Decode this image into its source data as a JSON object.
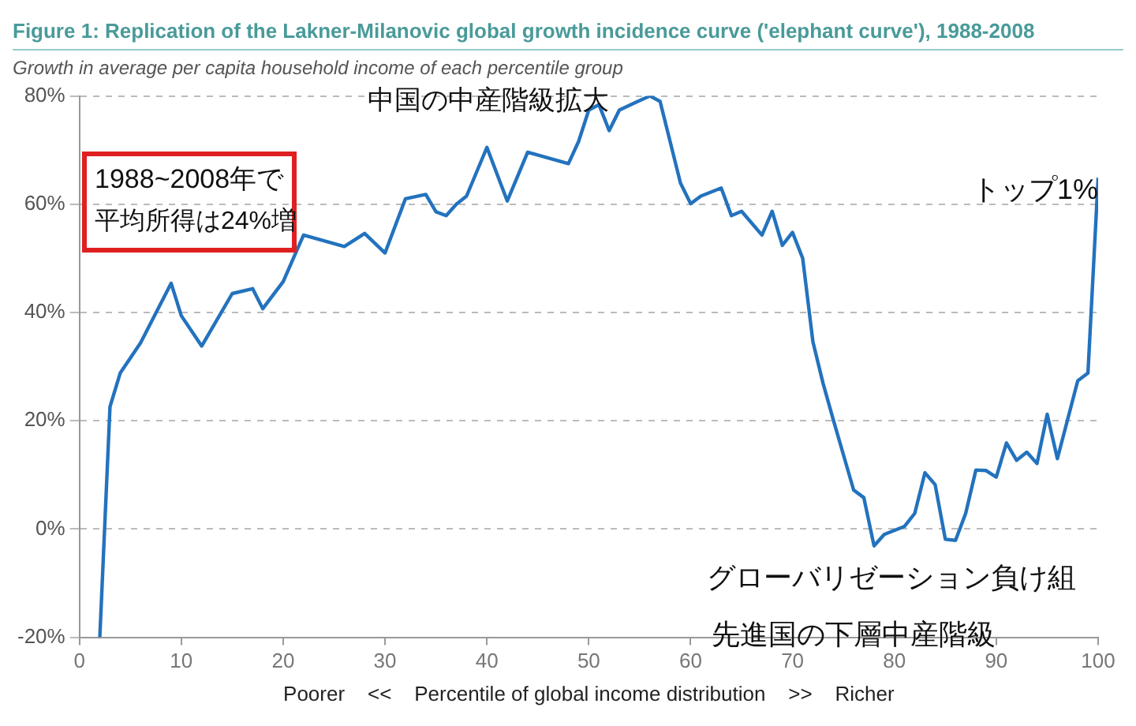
{
  "chart_data": {
    "type": "line",
    "title": "Figure 1:  Replication of the Lakner-Milanovic global growth incidence curve ('elephant curve'), 1988-2008",
    "subtitle": "Growth in average per capita household income of each percentile group",
    "xlabel": "Poorer    <<    Percentile of global income distribution    >>    Richer",
    "x": [
      2,
      3,
      4,
      6,
      9,
      10,
      12,
      15,
      17,
      18,
      20,
      22,
      26,
      28,
      30,
      32,
      34,
      35,
      36,
      37,
      38,
      40,
      42,
      44,
      48,
      49,
      50,
      51,
      52,
      53,
      54.6,
      56,
      57,
      59,
      60,
      61,
      63,
      64,
      65,
      67,
      68,
      69,
      70,
      71,
      72,
      73,
      74,
      76,
      77,
      78,
      79,
      81,
      82,
      83,
      84,
      85,
      86,
      87,
      88,
      89,
      90,
      91,
      92,
      93,
      94,
      95,
      96,
      98,
      99,
      100
    ],
    "series": [
      {
        "color": "#2372be",
        "values": [
          -20,
          22.6,
          28.8,
          34.4,
          45.4,
          39.4,
          33.8,
          43.5,
          44.4,
          40.7,
          45.7,
          54.3,
          52.2,
          54.6,
          51,
          61,
          61.8,
          58.6,
          57.9,
          60,
          61.5,
          70.5,
          60.6,
          69.6,
          67.5,
          71.6,
          77.4,
          78.4,
          73.6,
          77.4,
          78.8,
          80,
          79,
          63.9,
          60.1,
          61.5,
          63,
          57.9,
          58.7,
          54.3,
          58.7,
          52.4,
          54.8,
          50,
          34.6,
          26.9,
          20.2,
          7.2,
          5.8,
          -3.1,
          -1,
          0.5,
          2.9,
          10.4,
          8.2,
          -1.9,
          -2.1,
          2.9,
          10.9,
          10.8,
          9.6,
          15.9,
          12.7,
          14.2,
          12.1,
          21.2,
          13,
          27.4,
          28.8,
          64.9
        ]
      }
    ],
    "xlim": [
      0,
      100
    ],
    "xticks": [
      0,
      10,
      20,
      30,
      40,
      50,
      60,
      70,
      80,
      90,
      100
    ],
    "ylim": [
      -20,
      80
    ],
    "yticks": [
      {
        "value": -20,
        "label": "-20%"
      },
      {
        "value": 0,
        "label": "0%"
      },
      {
        "value": 20,
        "label": "20%"
      },
      {
        "value": 40,
        "label": "40%"
      },
      {
        "value": 60,
        "label": "60%"
      },
      {
        "value": 80,
        "label": "80%"
      }
    ],
    "grid": "y",
    "legend": false,
    "marker": "none",
    "line_style": "solid",
    "annotations": [
      "中国の中産階級拡大",
      "1988~2008年で",
      "平均所得は24%増",
      "トップ1%",
      "グローバリゼーション負け組",
      "先進国の下層中産階級"
    ]
  }
}
